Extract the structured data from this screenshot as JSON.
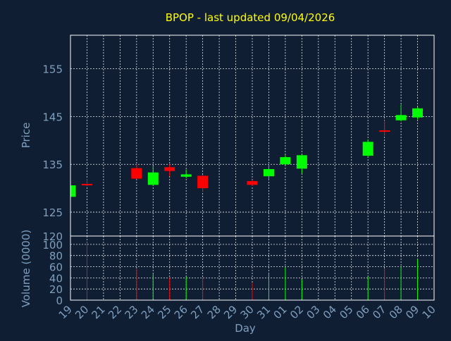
{
  "colors": {
    "background": "#0f1e33",
    "plot_background": "#0f1e33",
    "frame": "#ffffff",
    "grid": "#ffffff",
    "title": "#ffff00",
    "axis_text": "#7f9fbf",
    "up": "#00ff00",
    "down": "#ff0000"
  },
  "chart_data": {
    "type": "candlestick",
    "title": "BPOP - last updated 09/04/2026",
    "xlabel": "Day",
    "ylabel_price": "Price",
    "ylabel_volume": "Volume (0000)",
    "grid": true,
    "x_ticks": [
      "19",
      "20",
      "21",
      "22",
      "23",
      "24",
      "25",
      "26",
      "27",
      "28",
      "29",
      "30",
      "31",
      "01",
      "02",
      "03",
      "04",
      "05",
      "06",
      "07",
      "08",
      "09",
      "10"
    ],
    "price_ylim": [
      120,
      162
    ],
    "price_yticks": [
      120,
      125,
      135,
      145,
      155
    ],
    "volume_ylim": [
      0,
      115
    ],
    "volume_yticks": [
      0,
      20,
      40,
      60,
      80,
      100
    ],
    "candles": [
      {
        "day": "19",
        "open": 128.2,
        "high": 130.8,
        "low": 128.2,
        "close": 130.6,
        "volume": 22
      },
      {
        "day": "20",
        "open": 130.9,
        "high": 131.9,
        "low": 130.4,
        "close": 130.6,
        "volume": 104
      },
      {
        "day": "23",
        "open": 134.2,
        "high": 135.0,
        "low": 131.9,
        "close": 132.0,
        "volume": 56
      },
      {
        "day": "24",
        "open": 130.7,
        "high": 134.6,
        "low": 130.5,
        "close": 133.3,
        "volume": 47
      },
      {
        "day": "25",
        "open": 134.4,
        "high": 135.0,
        "low": 132.5,
        "close": 133.6,
        "volume": 40
      },
      {
        "day": "26",
        "open": 132.4,
        "high": 133.9,
        "low": 132.1,
        "close": 132.9,
        "volume": 42
      },
      {
        "day": "27",
        "open": 132.6,
        "high": 132.8,
        "low": 129.3,
        "close": 130.0,
        "volume": 41
      },
      {
        "day": "30",
        "open": 131.5,
        "high": 131.7,
        "low": 130.5,
        "close": 130.7,
        "volume": 31
      },
      {
        "day": "31",
        "open": 132.5,
        "high": 134.9,
        "low": 131.8,
        "close": 134.0,
        "volume": 48
      },
      {
        "day": "01",
        "open": 135.0,
        "high": 136.9,
        "low": 134.8,
        "close": 136.5,
        "volume": 59
      },
      {
        "day": "02",
        "open": 134.1,
        "high": 137.0,
        "low": 133.1,
        "close": 136.9,
        "volume": 37
      },
      {
        "day": "06",
        "open": 136.8,
        "high": 140.1,
        "low": 136.5,
        "close": 139.7,
        "volume": 42
      },
      {
        "day": "07",
        "open": 142.1,
        "high": 144.2,
        "low": 140.9,
        "close": 141.8,
        "volume": 57
      },
      {
        "day": "08",
        "open": 144.2,
        "high": 147.5,
        "low": 144.0,
        "close": 145.3,
        "volume": 60
      },
      {
        "day": "09",
        "open": 144.8,
        "high": 147.0,
        "low": 144.4,
        "close": 146.7,
        "volume": 73
      }
    ]
  }
}
